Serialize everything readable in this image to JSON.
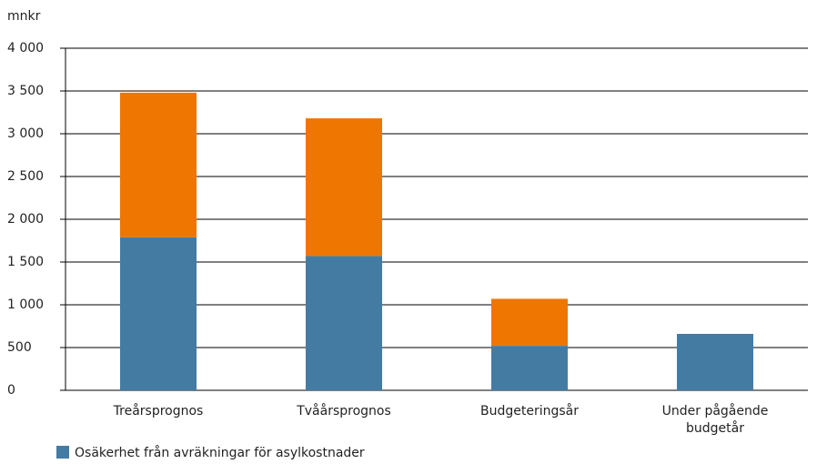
{
  "chart_data": {
    "type": "stacked_bar",
    "y_label": "mnkr",
    "categories": [
      "Treårsprognos",
      "Tvåårsprognos",
      "Budgeteringsår",
      "Under pågående budgetår"
    ],
    "series": [
      {
        "name": "Osäkerhet från avräkningar för asylkostnader",
        "color": "#447ba3",
        "values": [
          1790,
          1570,
          520,
          660
        ]
      },
      {
        "color": "#ee7601",
        "values": [
          1690,
          1610,
          550,
          0
        ]
      }
    ],
    "ylim": [
      0,
      4000
    ],
    "yticks": [
      0,
      500,
      {
        "value": 1000,
        "label": "1 000"
      },
      {
        "value": 1500,
        "label": "1 500"
      },
      {
        "value": 2000,
        "label": "2 000"
      },
      {
        "value": 2500,
        "label": "2 500"
      },
      {
        "value": 3000,
        "label": "3 000"
      },
      {
        "value": 3500,
        "label": "3 500"
      },
      {
        "value": 4000,
        "label": "4 000"
      }
    ],
    "grid": true
  }
}
